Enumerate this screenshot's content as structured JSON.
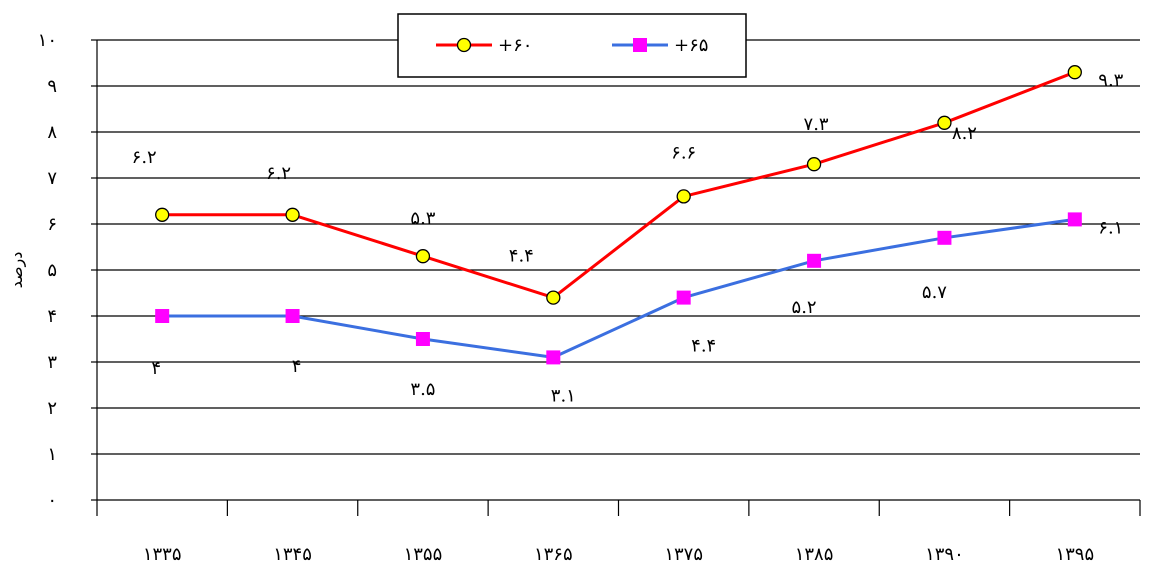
{
  "chart_data": {
    "type": "line",
    "categories": [
      "۱۳۳۵",
      "۱۳۴۵",
      "۱۳۵۵",
      "۱۳۶۵",
      "۱۳۷۵",
      "۱۳۸۵",
      "۱۳۹۰",
      "۱۳۹۵"
    ],
    "ylabel": "درصد",
    "ylim": [
      0,
      10
    ],
    "ytick_labels": [
      "۰",
      "۱",
      "۲",
      "۳",
      "۴",
      "۵",
      "۶",
      "۷",
      "۸",
      "۹",
      "۱۰"
    ],
    "grid": true,
    "legend_position": "top-center",
    "series": [
      {
        "name": "+۶۰",
        "color": "#ff0000",
        "marker": "circle",
        "marker_fill": "#ffff00",
        "values": [
          6.2,
          6.2,
          5.3,
          4.4,
          6.6,
          7.3,
          8.2,
          9.3
        ],
        "data_labels": [
          "۶.۲",
          "۶.۲",
          "۵.۳",
          "۴.۴",
          "۶.۶",
          "۷.۳",
          "۸.۲",
          "۹.۳"
        ]
      },
      {
        "name": "+۶۵",
        "color": "#3b6fe0",
        "marker": "square",
        "marker_fill": "#ff00ff",
        "values": [
          4.0,
          4.0,
          3.5,
          3.1,
          4.4,
          5.2,
          5.7,
          6.1
        ],
        "data_labels": [
          "۴",
          "۴",
          "۳.۵",
          "۳.۱",
          "۴.۴",
          "۵.۲",
          "۵.۷",
          "۶.۱"
        ]
      }
    ]
  }
}
